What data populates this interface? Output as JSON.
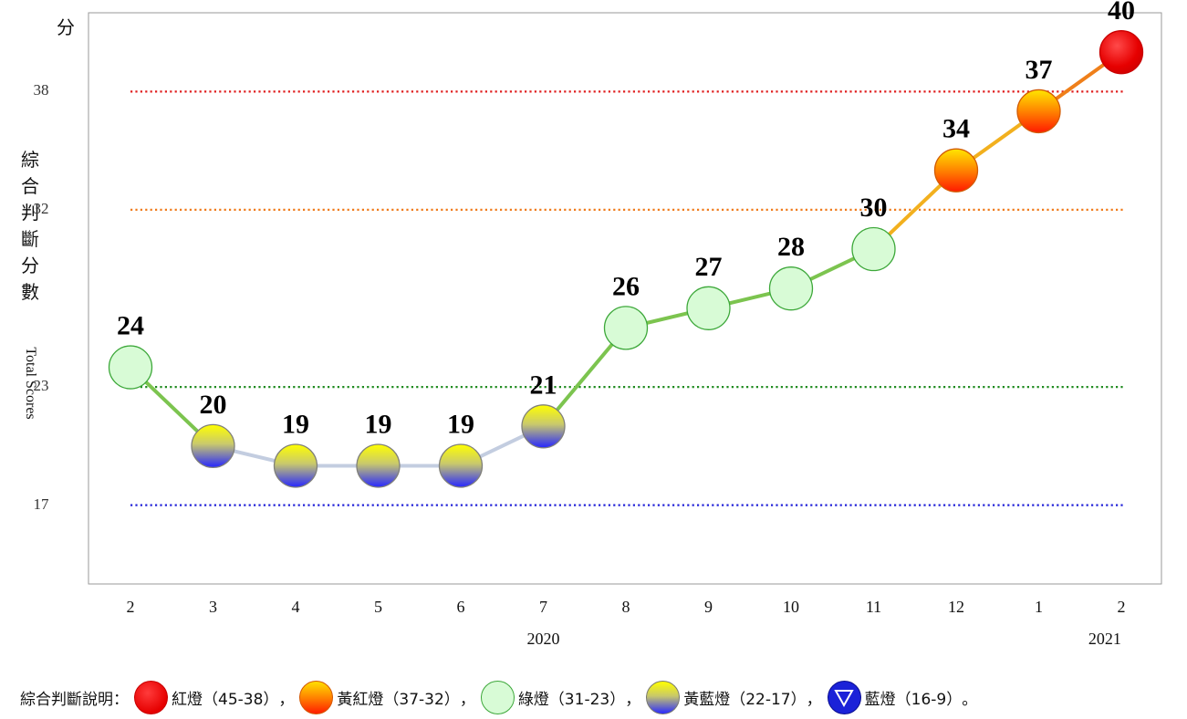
{
  "chart_data": {
    "type": "line",
    "unit_label": "分",
    "ylabel_cn": "綜合判斷分數",
    "ylabel_en": "Total Scores",
    "ylim": [
      13,
      42
    ],
    "threshold_lines": [
      {
        "value": 38,
        "color": "#e01e1e"
      },
      {
        "value": 32,
        "color": "#ef7a1a"
      },
      {
        "value": 23,
        "color": "#1f8a1f"
      },
      {
        "value": 17,
        "color": "#2323d8"
      }
    ],
    "y_ticks": [
      "38",
      "32",
      "23",
      "17"
    ],
    "categories": [
      "2",
      "3",
      "4",
      "5",
      "6",
      "7",
      "8",
      "9",
      "10",
      "11",
      "12",
      "1",
      "2"
    ],
    "values": [
      24,
      20,
      19,
      19,
      19,
      21,
      26,
      27,
      28,
      30,
      34,
      37,
      40
    ],
    "signals": [
      "green",
      "yellow-blue",
      "yellow-blue",
      "yellow-blue",
      "yellow-blue",
      "yellow-blue",
      "green",
      "green",
      "green",
      "green",
      "yellow-red",
      "yellow-red",
      "red"
    ],
    "years": [
      {
        "label": "2020",
        "at_index": 5
      },
      {
        "label": "2021",
        "at_index": 11.8
      }
    ],
    "colors": {
      "red": "#e60000",
      "yellow-red": "#ff7a00",
      "green": "#d8fbd6",
      "yellow-blue": "#ffff00",
      "blue": "#1b22d8"
    }
  },
  "legend": {
    "title": "綜合判斷說明：",
    "items": [
      {
        "label": "紅燈（45-38）",
        "sep": "，"
      },
      {
        "label": "黃紅燈（37-32）",
        "sep": "，"
      },
      {
        "label": "綠燈（31-23）",
        "sep": "，"
      },
      {
        "label": "黃藍燈（22-17）",
        "sep": "，"
      },
      {
        "label": "藍燈（16-9）",
        "sep": "。"
      }
    ]
  }
}
